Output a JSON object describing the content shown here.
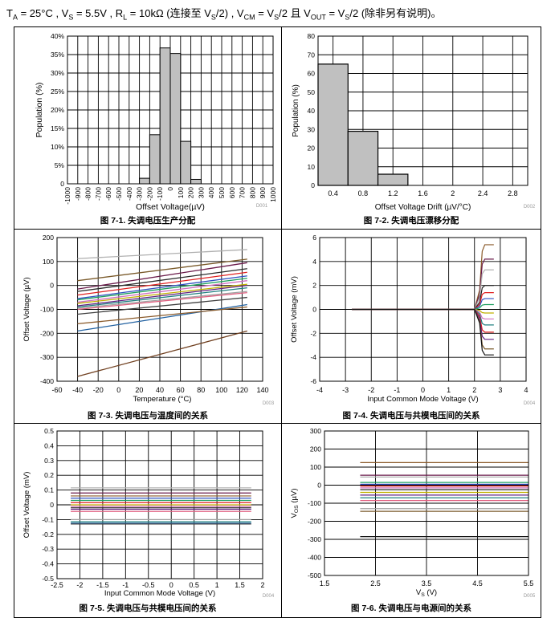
{
  "header": {
    "ta_sym": "T",
    "ta_sub": "A",
    "ta_val": " = 25°C , ",
    "vs_sym": "V",
    "vs_sub": "S",
    "vs_val": " = 5.5V , ",
    "rl_sym": "R",
    "rl_sub": "L",
    "rl_val": " = 10kΩ (连接至 V",
    "rl_sub2": "S",
    "rl_end": "/2) , ",
    "vcm_sym": "V",
    "vcm_sub": "CM",
    "vcm_mid": " = V",
    "vcm_sub2": "S",
    "vcm_end": "/2 且 V",
    "vout_sub": "OUT",
    "vout_mid": " = V",
    "vout_sub2": "S",
    "tail": "/2 (除非另有说明)。"
  },
  "chart_data": [
    {
      "id": "fig1",
      "type": "bar",
      "caption": "图 7-1. 失调电压生产分配",
      "code": "D001",
      "xlabel": "Offset Voltage(µV)",
      "ylabel": "Population (%)",
      "ylim": [
        0,
        40
      ],
      "yticks": [
        "0",
        "5%",
        "10%",
        "15%",
        "20%",
        "25%",
        "30%",
        "35%",
        "40%"
      ],
      "categories": [
        "-1000",
        "-900",
        "-800",
        "-700",
        "-600",
        "-500",
        "-400",
        "-300",
        "-200",
        "-100",
        "0",
        "100",
        "200",
        "300",
        "400",
        "500",
        "600",
        "700",
        "800",
        "900",
        "1000"
      ],
      "bins": [
        {
          "x0": -300,
          "x1": -200,
          "value": 1.5
        },
        {
          "x0": -200,
          "x1": -100,
          "value": 13.3
        },
        {
          "x0": -100,
          "x1": 0,
          "value": 36.8
        },
        {
          "x0": 0,
          "x1": 100,
          "value": 35.3
        },
        {
          "x0": 100,
          "x1": 200,
          "value": 11.5
        },
        {
          "x0": 200,
          "x1": 300,
          "value": 1.2
        }
      ],
      "xlim": [
        -1000,
        1000
      ],
      "grid": true
    },
    {
      "id": "fig2",
      "type": "bar",
      "caption": "图 7-2. 失调电压漂移分配",
      "code": "D002",
      "xlabel": "Offset Voltage Drift (µV/°C)",
      "ylabel": "Population (%)",
      "ylim": [
        0,
        80
      ],
      "xlim": [
        0.2,
        3.0
      ],
      "yticks": [
        "0",
        "10",
        "20",
        "30",
        "40",
        "50",
        "60",
        "70",
        "80"
      ],
      "xticks": [
        "0.4",
        "0.8",
        "1.2",
        "1.6",
        "2",
        "2.4",
        "2.8"
      ],
      "bins": [
        {
          "x0": 0.2,
          "x1": 0.6,
          "value": 65
        },
        {
          "x0": 0.6,
          "x1": 1.0,
          "value": 29
        },
        {
          "x0": 1.0,
          "x1": 1.4,
          "value": 6
        }
      ],
      "grid": true
    },
    {
      "id": "fig3",
      "type": "line",
      "caption": "图 7-3. 失调电压与温度间的关系",
      "code": "D003",
      "xlabel": "Temperature (°C)",
      "ylabel": "Offset Voltage (µV)",
      "xlim": [
        -60,
        140
      ],
      "ylim": [
        -400,
        200
      ],
      "xticks": [
        "-60",
        "-40",
        "-20",
        "0",
        "20",
        "40",
        "60",
        "80",
        "100",
        "120",
        "140"
      ],
      "yticks": [
        "-400",
        "-300",
        "-200",
        "-100",
        "0",
        "100",
        "200"
      ],
      "series": [
        {
          "color": "#b0b0b0",
          "x": [
            -40,
            125
          ],
          "y": [
            112,
            150
          ]
        },
        {
          "color": "#7a5a2a",
          "x": [
            -40,
            125
          ],
          "y": [
            20,
            110
          ]
        },
        {
          "color": "#6a1a4a",
          "x": [
            -40,
            125
          ],
          "y": [
            -15,
            95
          ]
        },
        {
          "color": "#2a2a2a",
          "x": [
            -40,
            125
          ],
          "y": [
            -25,
            70
          ]
        },
        {
          "color": "#e02020",
          "x": [
            -40,
            125
          ],
          "y": [
            -40,
            55
          ]
        },
        {
          "color": "#3050c0",
          "x": [
            -40,
            125
          ],
          "y": [
            -55,
            40
          ]
        },
        {
          "color": "#20a060",
          "x": [
            -40,
            125
          ],
          "y": [
            -60,
            30
          ]
        },
        {
          "color": "#d070c0",
          "x": [
            -40,
            125
          ],
          "y": [
            -70,
            20
          ]
        },
        {
          "color": "#c0b000",
          "x": [
            -40,
            125
          ],
          "y": [
            -75,
            5
          ]
        },
        {
          "color": "#602080",
          "x": [
            -40,
            125
          ],
          "y": [
            -85,
            0
          ]
        },
        {
          "color": "#208080",
          "x": [
            -40,
            125
          ],
          "y": [
            -90,
            -10
          ]
        },
        {
          "color": "#a0a0a0",
          "x": [
            -40,
            125
          ],
          "y": [
            -95,
            -25
          ]
        },
        {
          "color": "#e06080",
          "x": [
            -40,
            125
          ],
          "y": [
            -100,
            -30
          ]
        },
        {
          "color": "#404040",
          "x": [
            -40,
            125
          ],
          "y": [
            -120,
            -50
          ]
        },
        {
          "color": "#2060a0",
          "x": [
            -40,
            125
          ],
          "y": [
            -190,
            -80
          ]
        },
        {
          "color": "#8a5a2a",
          "x": [
            -40,
            125
          ],
          "y": [
            -160,
            -90
          ]
        },
        {
          "color": "#704020",
          "x": [
            -40,
            125
          ],
          "y": [
            -380,
            -190
          ]
        }
      ],
      "grid": true
    },
    {
      "id": "fig4",
      "type": "line",
      "caption": "图 7-4. 失调电压与共模电压间的关系",
      "code": "D004",
      "xlabel": "Input Common Mode Voltage (V)",
      "ylabel": "Offset Voltage (mV)",
      "xlim": [
        -4,
        4
      ],
      "ylim": [
        -6,
        6
      ],
      "xticks": [
        "-4",
        "-3",
        "-2",
        "-1",
        "0",
        "1",
        "2",
        "3",
        "4"
      ],
      "yticks": [
        "-6",
        "-4",
        "-2",
        "0",
        "2",
        "4",
        "6"
      ],
      "series": [
        {
          "color": "#8a5a2a",
          "end": 5.4
        },
        {
          "color": "#6a1a4a",
          "end": 4.2
        },
        {
          "color": "#b0b0b0",
          "end": 3.3
        },
        {
          "color": "#202020",
          "end": 2.0
        },
        {
          "color": "#e02020",
          "end": 1.4
        },
        {
          "color": "#3050c0",
          "end": 0.9
        },
        {
          "color": "#20a060",
          "end": 0.4
        },
        {
          "color": "#c0b000",
          "end": -0.3
        },
        {
          "color": "#d070c0",
          "end": -0.8
        },
        {
          "color": "#208080",
          "end": -1.3
        },
        {
          "color": "#e02020",
          "end": -1.9
        },
        {
          "color": "#602080",
          "end": -2.5
        },
        {
          "color": "#7a5a2a",
          "end": -3.3
        },
        {
          "color": "#101010",
          "end": -3.8
        }
      ],
      "grid": true
    },
    {
      "id": "fig5",
      "type": "line",
      "caption": "图 7-5. 失调电压与共模电压间的关系",
      "code": "D004",
      "xlabel": "Input Common Mode Voltage (V)",
      "ylabel": "Offset Voltage (mV)",
      "xlim": [
        -2.5,
        2.0
      ],
      "ylim": [
        -0.5,
        0.5
      ],
      "xticks": [
        "-2.5",
        "-2",
        "-1.5",
        "-1",
        "-0.5",
        "0",
        "0.5",
        "1",
        "1.5",
        "2"
      ],
      "yticks": [
        "-0.5",
        "-0.4",
        "-0.3",
        "-0.2",
        "-0.1",
        "0",
        "0.1",
        "0.2",
        "0.3",
        "0.4",
        "0.5"
      ],
      "series": [
        {
          "color": "#b0b0b0",
          "y": 0.115
        },
        {
          "color": "#6a1a4a",
          "y": 0.08
        },
        {
          "color": "#8a5a2a",
          "y": 0.06
        },
        {
          "color": "#3050c0",
          "y": 0.045
        },
        {
          "color": "#20a060",
          "y": 0.03
        },
        {
          "color": "#e02020",
          "y": 0.015
        },
        {
          "color": "#c0b000",
          "y": 0.0
        },
        {
          "color": "#d070c0",
          "y": -0.01
        },
        {
          "color": "#2a2a2a",
          "y": -0.02
        },
        {
          "color": "#602080",
          "y": -0.03
        },
        {
          "color": "#e06080",
          "y": -0.045
        },
        {
          "color": "#a0a0a0",
          "y": -0.1
        },
        {
          "color": "#208080",
          "y": -0.115
        },
        {
          "color": "#2060a0",
          "y": -0.125
        },
        {
          "color": "#404040",
          "y": -0.13
        }
      ],
      "grid": true
    },
    {
      "id": "fig6",
      "type": "line",
      "caption": "图 7-6. 失调电压与电源间的关系",
      "code": "D005",
      "xlabel": "V_S (V)",
      "ylabel": "V_OS (µV)",
      "xlim": [
        1.5,
        5.5
      ],
      "ylim": [
        -500,
        300
      ],
      "xticks": [
        "1.5",
        "2.5",
        "3.5",
        "4.5",
        "5.5"
      ],
      "yticks": [
        "-500",
        "-400",
        "-300",
        "-200",
        "-100",
        "0",
        "100",
        "200",
        "300"
      ],
      "series": [
        {
          "color": "#8a5a2a",
          "y": 125
        },
        {
          "color": "#6a1a4a",
          "y": 55
        },
        {
          "color": "#b0b0b0",
          "y": 45
        },
        {
          "color": "#20a060",
          "y": 15
        },
        {
          "color": "#3050c0",
          "y": 5
        },
        {
          "color": "#e02020",
          "y": -5
        },
        {
          "color": "#d070c0",
          "y": -15
        },
        {
          "color": "#2a2a2a",
          "y": -25
        },
        {
          "color": "#c0b000",
          "y": -40
        },
        {
          "color": "#602080",
          "y": -55
        },
        {
          "color": "#208080",
          "y": -70
        },
        {
          "color": "#e06080",
          "y": -85
        },
        {
          "color": "#a0a0a0",
          "y": -130
        },
        {
          "color": "#7a5a2a",
          "y": -145
        },
        {
          "color": "#101010",
          "y": -285
        }
      ],
      "grid": true
    }
  ]
}
